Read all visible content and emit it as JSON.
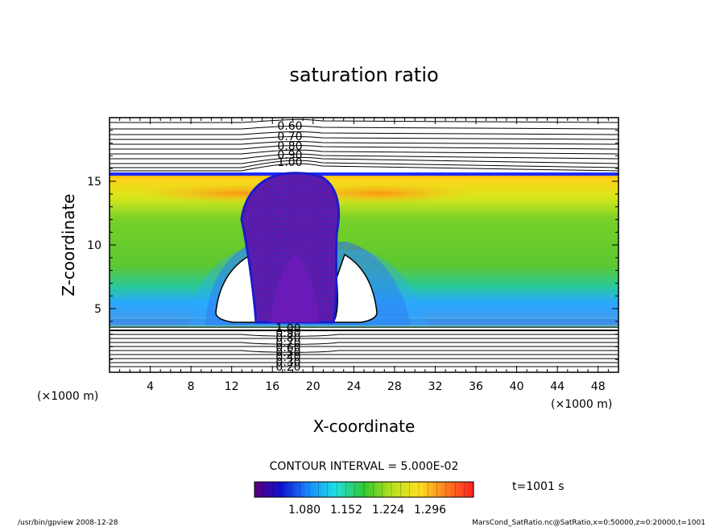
{
  "chart_data": {
    "type": "heatmap",
    "title": "saturation ratio",
    "xlabel": "X-coordinate",
    "ylabel": "Z-coordinate",
    "x_unit": "(×1000 m)",
    "y_unit": "(×1000 m)",
    "xlim": [
      0,
      50
    ],
    "ylim": [
      0,
      20
    ],
    "x_ticks": [
      4,
      8,
      12,
      16,
      20,
      24,
      28,
      32,
      36,
      40,
      44,
      48
    ],
    "y_ticks": [
      5,
      10,
      15
    ],
    "upper_contour_labels": [
      "0.60",
      "0.70",
      "0.80",
      "0.90",
      "1.00"
    ],
    "lower_contour_labels": [
      "1.00",
      "0.90",
      "0.80",
      "0.70",
      "0.60",
      "0.50",
      "0.40",
      "0.30",
      "0.20"
    ],
    "contour_interval": "CONTOUR INTERVAL = 5.000E-02",
    "colorbar_ticks": [
      "1.080",
      "1.152",
      "1.224",
      "1.296"
    ],
    "colormap": [
      "#5a007a",
      "#1010d0",
      "#1a8cff",
      "#20e0e0",
      "#30c830",
      "#b0e020",
      "#ffe020",
      "#ff8020",
      "#ff2020"
    ],
    "time_label": "t=1001 s"
  },
  "footer": {
    "left": "/usr/bin/gpview   2008-12-28",
    "right": "MarsCond_SatRatio.nc@SatRatio,x=0:50000,z=0:20000,t=1001"
  }
}
